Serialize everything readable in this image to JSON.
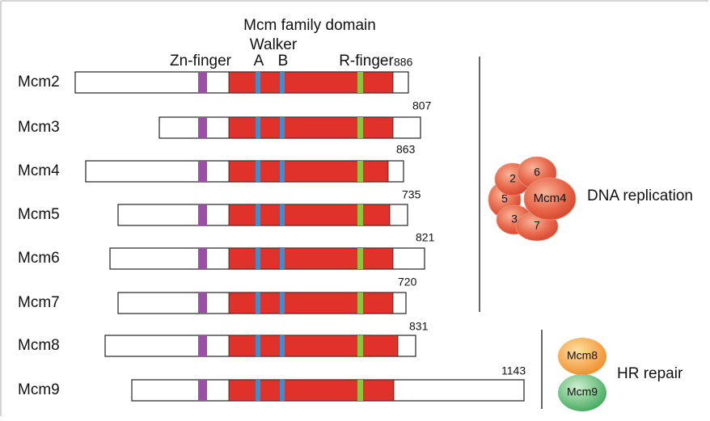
{
  "header": {
    "title": "Mcm family domain",
    "walker": "Walker",
    "zn_finger": "Zn-finger",
    "walker_a": "A",
    "walker_b": "B",
    "r_finger": "R-finger"
  },
  "proteins": [
    {
      "name": "Mcm2",
      "length": 886
    },
    {
      "name": "Mcm3",
      "length": 807
    },
    {
      "name": "Mcm4",
      "length": 863
    },
    {
      "name": "Mcm5",
      "length": 735
    },
    {
      "name": "Mcm6",
      "length": 821
    },
    {
      "name": "Mcm7",
      "length": 720
    },
    {
      "name": "Mcm8",
      "length": 831
    },
    {
      "name": "Mcm9",
      "length": 1143
    }
  ],
  "replication": {
    "label": "DNA replication",
    "subunits": [
      "2",
      "6",
      "5",
      "Mcm4",
      "3",
      "7"
    ]
  },
  "repair": {
    "label": "HR repair",
    "subunits": [
      "Mcm8",
      "Mcm9"
    ]
  }
}
